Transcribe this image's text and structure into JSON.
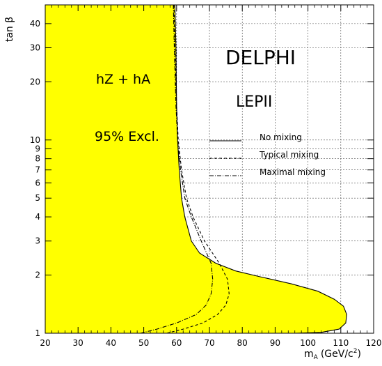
{
  "chart_data": {
    "type": "area",
    "xlabel_main": "m",
    "xlabel_sub": "A",
    "xlabel_unit": "(GeV/c",
    "xlabel_sup": "2",
    "xlabel_close": ")",
    "ylabel": "tan β",
    "xlim": [
      20,
      120
    ],
    "ylim": [
      1,
      50
    ],
    "y_log": true,
    "grid": true,
    "x_ticks": [
      20,
      30,
      40,
      50,
      60,
      70,
      80,
      90,
      100,
      110,
      120
    ],
    "y_ticks": [
      1,
      2,
      3,
      4,
      5,
      6,
      7,
      8,
      9,
      10,
      20,
      30,
      40
    ],
    "annotations": {
      "experiment": "DELPHI",
      "energy": "LEPII",
      "channels": "hZ + hA",
      "confidence": "95% Excl."
    },
    "legend": {
      "placement": "center-right",
      "entries": [
        {
          "name": "No mixing",
          "style": "solid"
        },
        {
          "name": "Typical mixing",
          "style": "dashed"
        },
        {
          "name": "Maximal mixing",
          "style": "dashdot"
        }
      ]
    },
    "fill_color": "#ffff00",
    "series": [
      {
        "name": "No mixing",
        "style": "solid",
        "filled": true,
        "x": [
          59.5,
          59.8,
          60.0,
          60.3,
          60.8,
          61.5,
          62.5,
          64.5,
          67.0,
          72.0,
          78.0,
          86.0,
          95.0,
          103.0,
          108.0,
          110.8,
          111.8,
          111.5,
          109.5,
          104.0,
          96.0,
          93.0
        ],
        "y": [
          50,
          30,
          15,
          10,
          7,
          5,
          4,
          3,
          2.6,
          2.3,
          2.1,
          1.95,
          1.8,
          1.65,
          1.5,
          1.38,
          1.25,
          1.13,
          1.05,
          1.01,
          1.0,
          1.0
        ]
      },
      {
        "name": "Typical mixing",
        "style": "dashed",
        "filled": false,
        "x": [
          59.2,
          59.5,
          60.0,
          60.5,
          61.5,
          63.0,
          65.0,
          68.5,
          73.0,
          75.5,
          76.0,
          75.0,
          72.5,
          68.0,
          62.0,
          57.0
        ],
        "y": [
          50,
          30,
          15,
          10,
          7,
          5,
          4,
          3,
          2.3,
          1.9,
          1.6,
          1.4,
          1.25,
          1.13,
          1.05,
          1.0
        ]
      },
      {
        "name": "Maximal mixing",
        "style": "dashdot",
        "filled": false,
        "x": [
          59.0,
          59.3,
          59.8,
          60.3,
          61.2,
          62.5,
          64.5,
          67.5,
          70.5,
          71.0,
          70.5,
          69.0,
          66.0,
          60.0,
          54.0,
          49.0
        ],
        "y": [
          50,
          30,
          15,
          10,
          7,
          5,
          4,
          3,
          2.3,
          1.9,
          1.6,
          1.4,
          1.25,
          1.13,
          1.05,
          1.0
        ]
      }
    ]
  }
}
